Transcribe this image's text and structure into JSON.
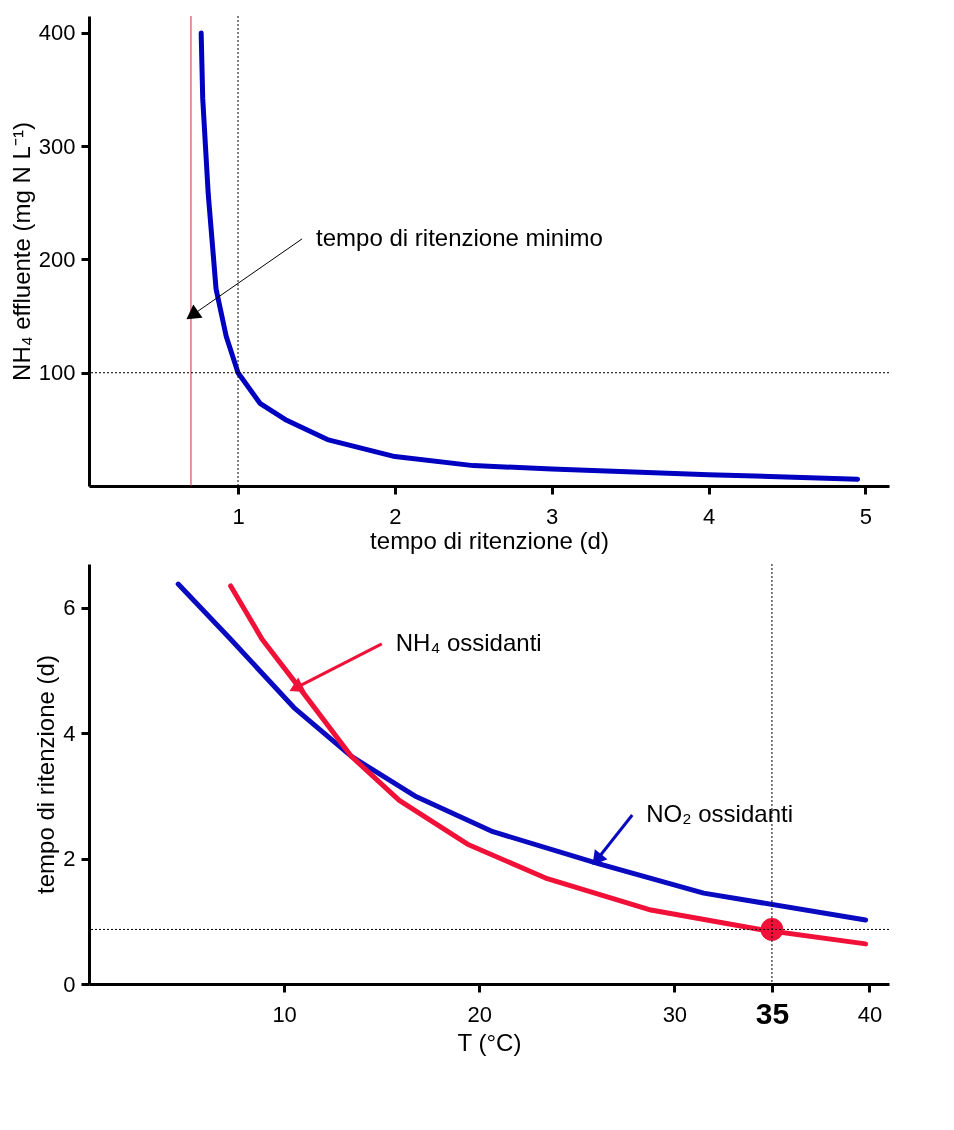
{
  "chart_data": [
    {
      "type": "line",
      "ylabel": "NH₄ effluente (mg N L⁻¹)",
      "xlabel": "tempo di ritenzione (d)",
      "xlim": [
        0.05,
        5.15
      ],
      "ylim": [
        0,
        415
      ],
      "xticks": [
        1,
        2,
        3,
        4,
        5
      ],
      "yticks": [
        100,
        200,
        300,
        400
      ],
      "grid": false,
      "line_style": "solid",
      "series": [
        {
          "color": "#0000c0",
          "x": [
            0.765,
            0.775,
            0.81,
            0.86,
            0.925,
            1.0,
            1.14,
            1.31,
            1.57,
            2.0,
            2.5,
            3.0,
            4.0,
            4.95
          ],
          "values": [
            400,
            342,
            258,
            174,
            132,
            100,
            73,
            58,
            41,
            26,
            18,
            15,
            10,
            6
          ]
        }
      ],
      "ref_lines": [
        {
          "axis": "x",
          "value": 0.7,
          "color": "#c03040",
          "line_style": "solid"
        },
        {
          "axis": "x",
          "value": 1,
          "color": "#000000",
          "line_style": "dotted"
        },
        {
          "axis": "y",
          "value": 100,
          "color": "#000000",
          "line_style": "dotted"
        }
      ],
      "annotations": [
        {
          "text": "tempo di ritenzione minimo",
          "x": 0.72,
          "y": 152
        }
      ]
    },
    {
      "type": "line",
      "ylabel": "tempo di ritenzione (d)",
      "xlabel": "T (°C)",
      "xlim": [
        0,
        41
      ],
      "ylim": [
        0,
        6.7
      ],
      "xticks": [
        10,
        20,
        30,
        35,
        40
      ],
      "yticks": [
        0,
        2,
        4,
        6
      ],
      "grid": false,
      "line_style": "solid",
      "series": [
        {
          "color": "#0a0ac0",
          "x": [
            4.57,
            7.26,
            10.5,
            13.45,
            16.7,
            20.7,
            26.1,
            31.5,
            39.8
          ],
          "values": [
            6.38,
            5.5,
            4.41,
            3.63,
            3.0,
            2.43,
            1.92,
            1.45,
            1.02
          ]
        },
        {
          "color": "#f01038",
          "x": [
            7.26,
            8.87,
            10.7,
            13.45,
            15.9,
            19.4,
            23.4,
            28.8,
            34.4,
            39.8
          ],
          "values": [
            6.35,
            5.5,
            4.76,
            3.63,
            2.93,
            2.23,
            1.69,
            1.18,
            0.87,
            0.64
          ]
        },
        {
          "type": "scatter",
          "marker": "circle",
          "color": "#f01038",
          "x": [
            35
          ],
          "values": [
            0.87
          ]
        }
      ],
      "ref_lines": [
        {
          "axis": "x",
          "value": 35,
          "color": "#000000",
          "line_style": "dotted"
        },
        {
          "axis": "y",
          "value": 0.87,
          "color": "#000000",
          "line_style": "dotted"
        }
      ],
      "annotations": [
        {
          "text": "NH₄ ossidanti",
          "x": 10.7,
          "y": 4.74
        },
        {
          "text": "NO₂ ossidanti",
          "x": 26.1,
          "y": 2.01
        }
      ]
    }
  ]
}
